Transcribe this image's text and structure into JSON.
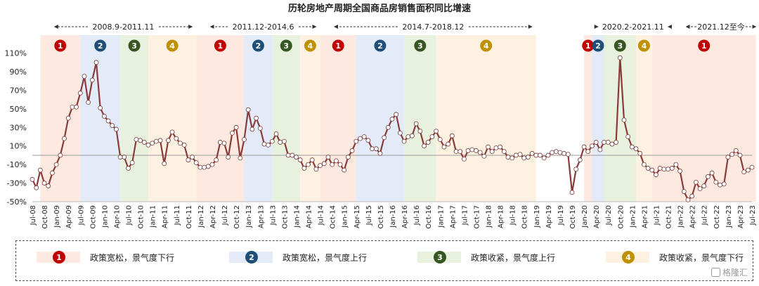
{
  "chart_data": {
    "type": "line",
    "title": "历轮房地产周期全国商品房销售面积同比增速",
    "ylim": [
      -0.5,
      1.15
    ],
    "yticks": [
      1.1,
      0.9,
      0.7,
      0.5,
      0.3,
      0.1,
      -0.1,
      -0.3,
      -0.5
    ],
    "ytick_labels": [
      "110%",
      "90%",
      "70%",
      "50%",
      "30%",
      "10%",
      "-10%",
      "-30%",
      "-50%"
    ],
    "xtick_labels": [
      "Jul-08",
      "Oct-08",
      "Jan-09",
      "Apr-09",
      "Jul-09",
      "Oct-09",
      "Jan-10",
      "Apr-10",
      "Jul-10",
      "Oct-10",
      "Jan-11",
      "Apr-11",
      "Jul-11",
      "Oct-11",
      "Jan-12",
      "Apr-12",
      "Jul-12",
      "Oct-12",
      "Jan-13",
      "Apr-13",
      "Jul-13",
      "Oct-13",
      "Jan-14",
      "Apr-14",
      "Jul-14",
      "Oct-14",
      "Jan-15",
      "Apr-15",
      "Jul-15",
      "Oct-15",
      "Jan-16",
      "Apr-16",
      "Jul-16",
      "Oct-16",
      "Jan-17",
      "Apr-17",
      "Jul-17",
      "Oct-17",
      "Jan-18",
      "Apr-18",
      "Jul-18",
      "Oct-18",
      "Jan-19",
      "Apr-19",
      "Jul-19",
      "Oct-19",
      "Jan-20",
      "Apr-20",
      "Jul-20",
      "Oct-20",
      "Jan-21",
      "Apr-21",
      "Jul-21",
      "Oct-21",
      "Jan-22",
      "Apr-22",
      "Jul-22",
      "Oct-22",
      "Jan-23",
      "Apr-23",
      "Jul-23"
    ],
    "x_start": "2008-07",
    "x_end": "2023-07",
    "series": [
      {
        "color": "#8b3a3a",
        "values": [
          -0.26,
          -0.35,
          -0.16,
          -0.3,
          -0.33,
          -0.19,
          -0.1,
          0.0,
          0.18,
          0.4,
          0.52,
          0.52,
          0.67,
          0.85,
          0.57,
          0.81,
          1.0,
          0.51,
          0.42,
          0.37,
          0.32,
          0.28,
          -0.02,
          -0.02,
          -0.14,
          -0.08,
          0.17,
          0.16,
          0.14,
          0.11,
          0.13,
          0.15,
          0.16,
          -0.09,
          0.16,
          0.25,
          0.18,
          0.13,
          0.11,
          -0.05,
          -0.02,
          -0.08,
          -0.13,
          -0.13,
          -0.12,
          -0.1,
          -0.05,
          0.14,
          0.13,
          -0.02,
          0.24,
          0.3,
          -0.03,
          0.17,
          0.49,
          0.28,
          0.4,
          0.29,
          0.12,
          0.11,
          0.15,
          0.23,
          0.14,
          0.15,
          0.0,
          0.0,
          -0.02,
          -0.05,
          -0.14,
          -0.1,
          -0.05,
          -0.15,
          -0.11,
          -0.09,
          -0.02,
          -0.1,
          -0.06,
          -0.1,
          -0.16,
          -0.02,
          0.05,
          0.15,
          0.18,
          0.2,
          0.16,
          0.07,
          0.07,
          0.02,
          0.19,
          0.3,
          0.39,
          0.44,
          0.24,
          0.15,
          0.2,
          0.21,
          0.34,
          0.26,
          0.1,
          0.14,
          0.2,
          0.26,
          0.17,
          0.09,
          0.12,
          0.21,
          0.04,
          0.04,
          -0.04,
          0.05,
          0.06,
          0.05,
          0.03,
          -0.01,
          0.09,
          0.04,
          0.08,
          0.09,
          0.04,
          -0.02,
          -0.03,
          0.0,
          0.01,
          -0.03,
          -0.02,
          0.02,
          0.0,
          0.0,
          -0.03,
          0.0,
          0.03,
          0.04,
          0.03,
          0.02,
          0.01,
          -0.4,
          -0.15,
          -0.05,
          0.09,
          0.04,
          0.1,
          0.14,
          0.06,
          0.14,
          0.14,
          0.12,
          0.14,
          1.05,
          0.38,
          0.2,
          0.09,
          0.07,
          0.02,
          -0.1,
          -0.14,
          -0.16,
          -0.21,
          -0.14,
          -0.15,
          -0.15,
          -0.14,
          -0.1,
          -0.17,
          -0.39,
          -0.48,
          -0.44,
          -0.29,
          -0.36,
          -0.33,
          -0.23,
          -0.19,
          -0.29,
          -0.32,
          -0.31,
          -0.02,
          0.01,
          0.05,
          0.0,
          -0.18,
          -0.16,
          -0.13
        ]
      }
    ],
    "zero_line": true,
    "periods": [
      {
        "label": "2008.9-2011.11",
        "start_index": 2,
        "end_index": 40
      },
      {
        "label": "2011.12-2014.6",
        "start_index": 41,
        "end_index": 71
      },
      {
        "label": "2014.7-2018.12",
        "start_index": 72,
        "end_index": 125
      },
      {
        "label": "2020.2-2021.11",
        "start_index": 138,
        "end_index": 159
      },
      {
        "label": "2021.12至今",
        "start_index": 160,
        "end_index": 181
      }
    ],
    "phases": [
      {
        "phase": 1,
        "start_index": 2,
        "end_index": 12
      },
      {
        "phase": 2,
        "start_index": 12,
        "end_index": 22
      },
      {
        "phase": 3,
        "start_index": 22,
        "end_index": 29
      },
      {
        "phase": 4,
        "start_index": 29,
        "end_index": 41
      },
      {
        "phase": 1,
        "start_index": 41,
        "end_index": 53
      },
      {
        "phase": 2,
        "start_index": 53,
        "end_index": 60
      },
      {
        "phase": 3,
        "start_index": 60,
        "end_index": 67
      },
      {
        "phase": 4,
        "start_index": 67,
        "end_index": 72
      },
      {
        "phase": 1,
        "start_index": 72,
        "end_index": 81
      },
      {
        "phase": 2,
        "start_index": 81,
        "end_index": 93
      },
      {
        "phase": 3,
        "start_index": 93,
        "end_index": 101
      },
      {
        "phase": 4,
        "start_index": 101,
        "end_index": 126
      },
      {
        "phase": 1,
        "start_index": 138,
        "end_index": 140
      },
      {
        "phase": 2,
        "start_index": 140,
        "end_index": 143
      },
      {
        "phase": 3,
        "start_index": 143,
        "end_index": 151
      },
      {
        "phase": 4,
        "start_index": 151,
        "end_index": 155
      },
      {
        "phase": 1,
        "start_index": 155,
        "end_index": 181
      }
    ]
  },
  "phase_styles": {
    "1": {
      "badge": "#c00000",
      "band": "#fde9df"
    },
    "2": {
      "badge": "#1f4e79",
      "band": "#e3ebf8"
    },
    "3": {
      "badge": "#375623",
      "band": "#e7f1de"
    },
    "4": {
      "badge": "#bf9000",
      "band": "#fdf2e2"
    }
  },
  "legend": [
    {
      "num": "1",
      "text": "政策宽松，景气度下行"
    },
    {
      "num": "2",
      "text": "政策宽松，景气度上行"
    },
    {
      "num": "3",
      "text": "政策收紧，景气度上行"
    },
    {
      "num": "4",
      "text": "政策收紧，景气度下行"
    }
  ],
  "watermark": "格隆汇"
}
